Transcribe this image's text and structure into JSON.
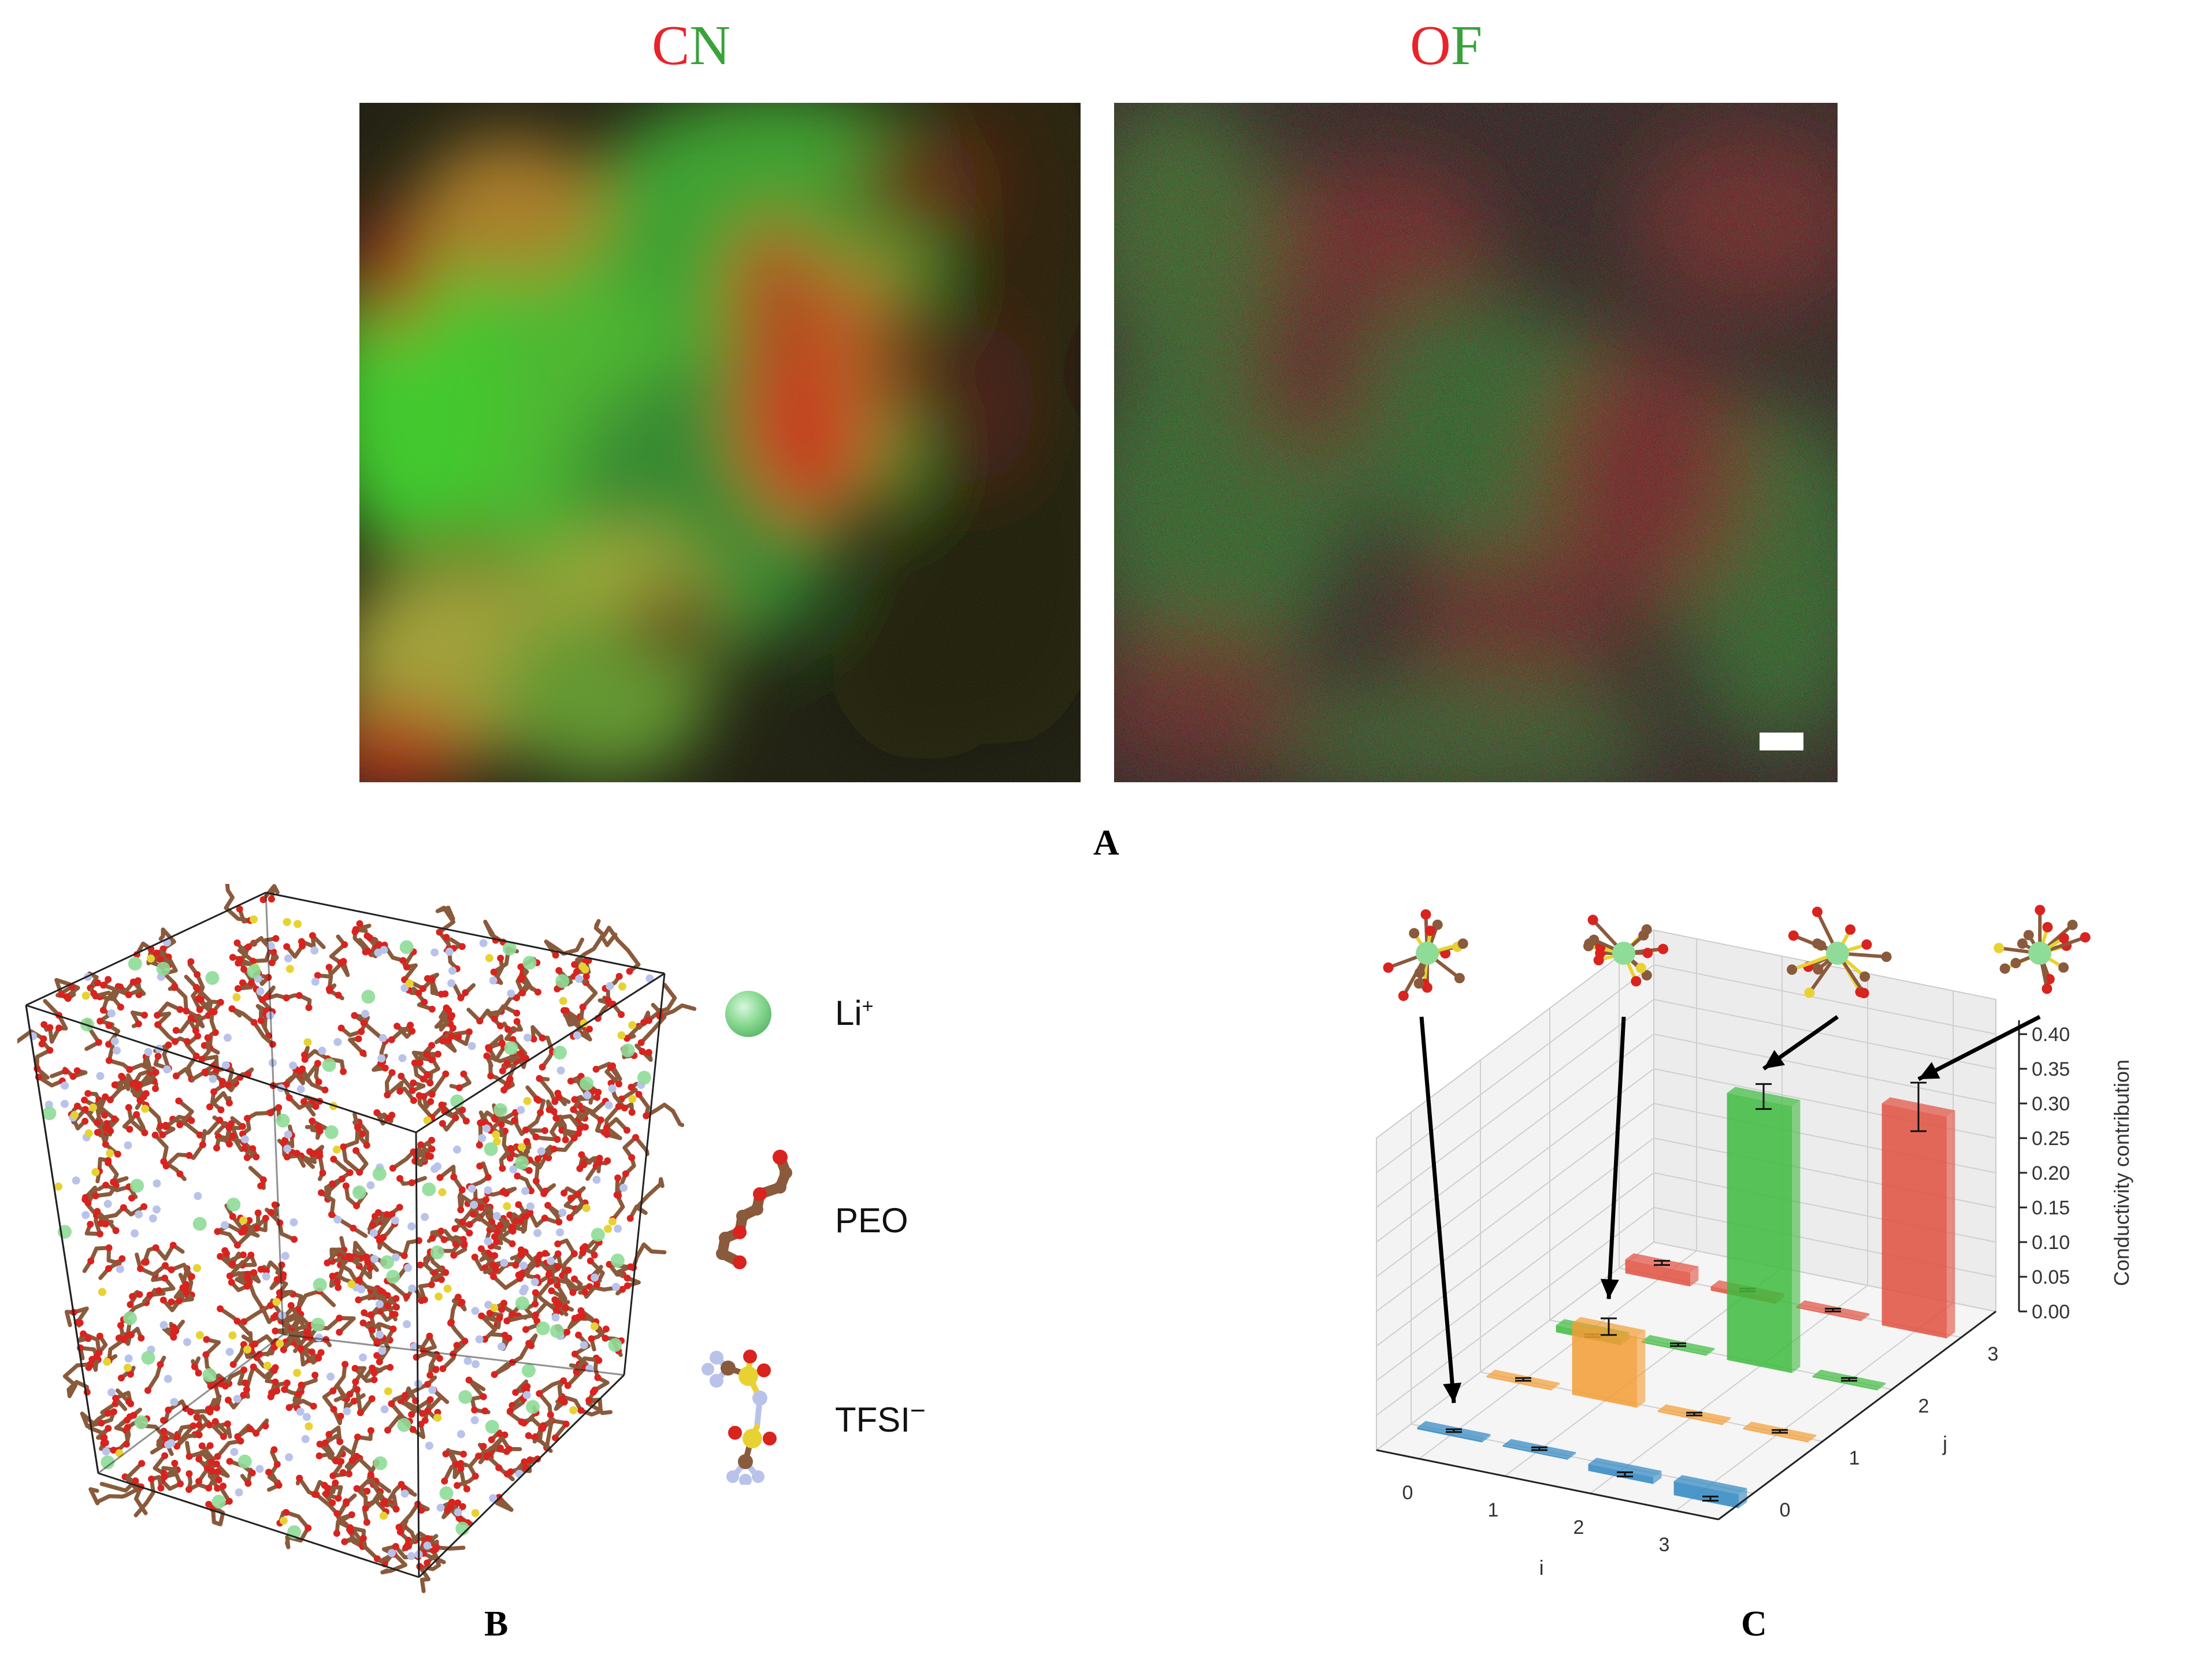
{
  "panel_A": {
    "label": "A",
    "left_map": {
      "title_first": "C",
      "title_second": "N",
      "title_first_color": "#e8242a",
      "title_second_color": "#3aa23a"
    },
    "right_map": {
      "title_first": "O",
      "title_second": "F",
      "title_first_color": "#e8242a",
      "title_second_color": "#3aa23a"
    }
  },
  "panel_B": {
    "label": "B",
    "legend": [
      {
        "label": "Li",
        "superscript": "+",
        "icon": "li-ion-sphere-icon"
      },
      {
        "label": "PEO",
        "superscript": "",
        "icon": "peo-chain-icon"
      },
      {
        "label": "TFSI",
        "superscript": "−",
        "icon": "tfsi-molecule-icon"
      }
    ],
    "colors": {
      "li": "#8fdc98",
      "carbon": "#8a5a3c",
      "oxygen": "#d8231f",
      "sulfur": "#e8d232",
      "fluorine": "#b9c3ea"
    }
  },
  "panel_C": {
    "label": "C",
    "chart_data": {
      "type": "bar",
      "subtype": "3d-bar",
      "xlabel": "i",
      "ylabel": "j",
      "zlabel": "Conductivity contribution",
      "x_ticks": [
        "0",
        "1",
        "2",
        "3"
      ],
      "y_ticks": [
        "0",
        "1",
        "2",
        "3"
      ],
      "z_ticks": [
        "0.00",
        "0.05",
        "0.10",
        "0.15",
        "0.20",
        "0.25",
        "0.30",
        "0.35",
        "0.40"
      ],
      "zlim": [
        0,
        0.42
      ],
      "series": [
        {
          "j": 0,
          "color": "#2e86c1",
          "values": [
            0.003,
            0.002,
            -0.01,
            -0.02
          ],
          "errors": [
            0.002,
            0.002,
            0.003,
            0.003
          ]
        },
        {
          "j": 1,
          "color": "#f39c34",
          "values": [
            0.002,
            0.103,
            0.002,
            0.002
          ],
          "errors": [
            0.002,
            0.012,
            0.002,
            0.002
          ]
        },
        {
          "j": 2,
          "color": "#3dbb3d",
          "values": [
            -0.01,
            0.002,
            0.385,
            0.002
          ],
          "errors": [
            0.002,
            0.002,
            0.018,
            0.002
          ]
        },
        {
          "j": 3,
          "color": "#e2503f",
          "values": [
            0.02,
            0.006,
            0.002,
            0.32
          ],
          "errors": [
            0.003,
            0.002,
            0.002,
            0.035
          ]
        }
      ],
      "arrows": [
        {
          "target_i": 0,
          "target_j": 0
        },
        {
          "target_i": 1,
          "target_j": 1
        },
        {
          "target_i": 2,
          "target_j": 2
        },
        {
          "target_i": 3,
          "target_j": 3
        }
      ]
    }
  }
}
